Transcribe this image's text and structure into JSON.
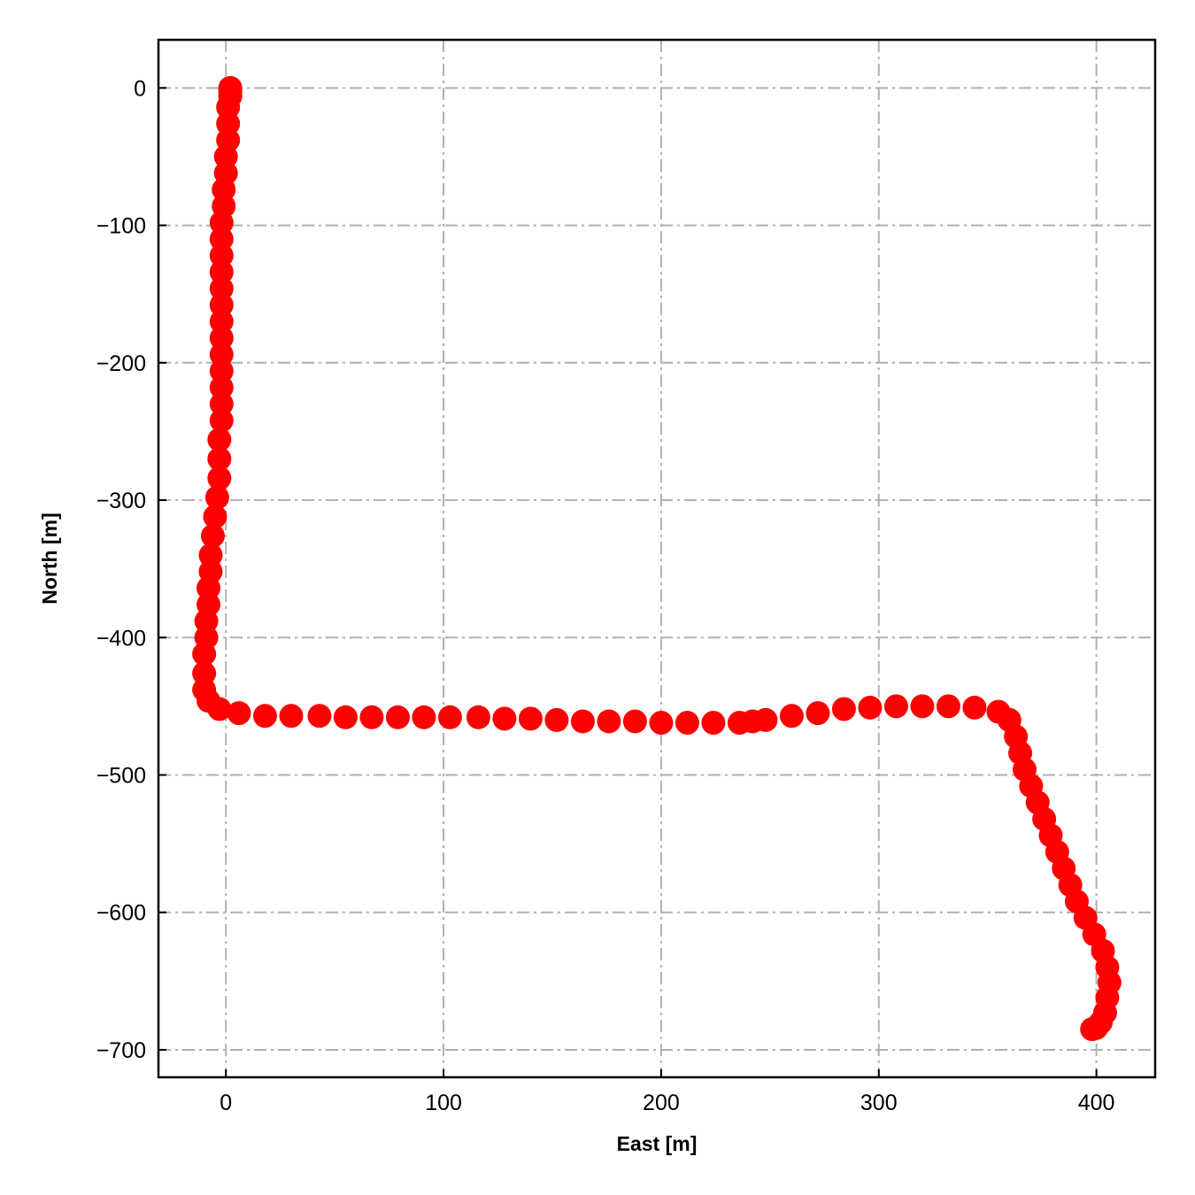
{
  "chart_data": {
    "type": "scatter",
    "xlabel": "East [m]",
    "ylabel": "North [m]",
    "xlim": [
      -31,
      427
    ],
    "ylim": [
      -720,
      35
    ],
    "xticks": [
      0,
      100,
      200,
      300,
      400
    ],
    "yticks": [
      0,
      -100,
      -200,
      -300,
      -400,
      -500,
      -600,
      -700
    ],
    "xtick_labels": [
      "0",
      "100",
      "200",
      "300",
      "400"
    ],
    "ytick_labels": [
      "0",
      "−100",
      "−200",
      "−300",
      "−400",
      "−500",
      "−600",
      "−700"
    ],
    "grid": true,
    "marker_color": "#ff0000",
    "series": [
      {
        "x": [
          2,
          2,
          2,
          2,
          1,
          1,
          1,
          0,
          0,
          -1,
          -1,
          -2,
          -2,
          -2,
          -2,
          -2,
          -2,
          -2,
          -2,
          -2,
          -2,
          -2,
          -2,
          -2,
          -3,
          -3,
          -3,
          -4,
          -5,
          -6,
          -7,
          -7,
          -8,
          -8,
          -9,
          -9,
          -10,
          -10,
          -10,
          -8,
          -3,
          6,
          18,
          30,
          43,
          55,
          67,
          79,
          91,
          103,
          116,
          128,
          140,
          152,
          164,
          176,
          188,
          200,
          212,
          224,
          236,
          242,
          248,
          260,
          272,
          284,
          296,
          308,
          320,
          332,
          344,
          355,
          360,
          363,
          365,
          367,
          370,
          373,
          376,
          379,
          382,
          385,
          388,
          391,
          395,
          399,
          403,
          405,
          406,
          405,
          404,
          402,
          400,
          398
        ],
        "y": [
          0,
          -1,
          -3,
          -6,
          -14,
          -26,
          -38,
          -50,
          -62,
          -74,
          -86,
          -98,
          -110,
          -122,
          -134,
          -146,
          -158,
          -170,
          -182,
          -194,
          -206,
          -218,
          -230,
          -242,
          -256,
          -270,
          -284,
          -298,
          -312,
          -326,
          -340,
          -352,
          -364,
          -376,
          -388,
          -400,
          -412,
          -426,
          -438,
          -446,
          -452,
          -455,
          -457,
          -457,
          -457,
          -458,
          -458,
          -458,
          -458,
          -458,
          -458,
          -459,
          -459,
          -460,
          -461,
          -461,
          -461,
          -462,
          -462,
          -462,
          -462,
          -461,
          -460,
          -457,
          -455,
          -452,
          -451,
          -450,
          -450,
          -450,
          -451,
          -454,
          -460,
          -472,
          -484,
          -496,
          -508,
          -520,
          -532,
          -544,
          -556,
          -568,
          -580,
          -592,
          -604,
          -616,
          -628,
          -640,
          -651,
          -662,
          -673,
          -680,
          -684,
          -685
        ]
      }
    ]
  }
}
